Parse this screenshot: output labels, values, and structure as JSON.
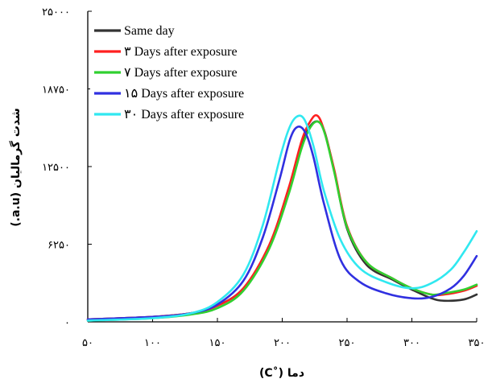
{
  "chart_data": {
    "type": "line",
    "title": "",
    "xlabel": "دما (˚C)",
    "ylabel": "شدت گرمالیان (a.u.)",
    "xlim": [
      50,
      350
    ],
    "ylim": [
      0,
      25000
    ],
    "x_ticks": [
      50,
      100,
      150,
      200,
      250,
      300,
      350
    ],
    "x_tick_labels": [
      "۵۰",
      "۱۰۰",
      "۱۵۰",
      "۲۰۰",
      "۲۵۰",
      "۳۰۰",
      "۳۵۰"
    ],
    "y_ticks": [
      0,
      6250,
      12500,
      18750,
      25000
    ],
    "y_tick_labels": [
      "۰",
      "۶۲۵۰",
      "۱۲۵۰۰",
      "۱۸۷۵۰",
      "۲۵۰۰۰"
    ],
    "grid": false,
    "legend_position": "top-left",
    "series": [
      {
        "name": "Same day",
        "color": "#333333",
        "x": [
          50,
          100,
          130,
          150,
          170,
          190,
          205,
          215,
          222,
          228,
          233,
          240,
          250,
          265,
          285,
          300,
          315,
          325,
          340,
          350
        ],
        "y": [
          200,
          400,
          700,
          1300,
          2700,
          6000,
          10500,
          14200,
          15800,
          16100,
          15200,
          12200,
          7500,
          4600,
          3400,
          2600,
          1900,
          1700,
          1800,
          2200
        ]
      },
      {
        "name": "۳ Days after exposure",
        "color": "#ff2020",
        "x": [
          50,
          100,
          130,
          150,
          170,
          190,
          205,
          215,
          222,
          227,
          232,
          240,
          250,
          265,
          285,
          300,
          315,
          325,
          340,
          350
        ],
        "y": [
          200,
          400,
          700,
          1300,
          2700,
          6200,
          10800,
          14600,
          16200,
          16600,
          15500,
          12300,
          7700,
          4800,
          3500,
          2700,
          2200,
          2200,
          2500,
          2900
        ]
      },
      {
        "name": "۷ Days after exposure",
        "color": "#30d030",
        "x": [
          50,
          100,
          130,
          150,
          170,
          190,
          205,
          215,
          222,
          228,
          233,
          240,
          250,
          265,
          285,
          300,
          315,
          325,
          340,
          350
        ],
        "y": [
          100,
          300,
          600,
          1100,
          2500,
          5900,
          10300,
          14000,
          15700,
          16100,
          15100,
          12100,
          7600,
          4800,
          3500,
          2700,
          2200,
          2300,
          2600,
          3000
        ]
      },
      {
        "name": "۱۵ Days after exposure",
        "color": "#3030e0",
        "x": [
          50,
          100,
          130,
          150,
          170,
          185,
          198,
          206,
          212,
          218,
          224,
          232,
          245,
          260,
          280,
          300,
          315,
          330,
          340,
          350
        ],
        "y": [
          200,
          400,
          700,
          1400,
          3300,
          6800,
          11500,
          14700,
          15700,
          15200,
          13300,
          9600,
          5000,
          3200,
          2300,
          1900,
          2000,
          2700,
          3700,
          5300
        ]
      },
      {
        "name": "۳۰ Days after exposure",
        "color": "#30e8f0",
        "x": [
          50,
          100,
          130,
          150,
          170,
          185,
          198,
          205,
          211,
          217,
          224,
          232,
          245,
          260,
          280,
          300,
          315,
          330,
          340,
          350
        ],
        "y": [
          100,
          300,
          700,
          1600,
          3800,
          7800,
          13100,
          15500,
          16500,
          16300,
          14200,
          10600,
          6600,
          4300,
          3200,
          2700,
          3100,
          4200,
          5600,
          7300
        ]
      }
    ]
  }
}
